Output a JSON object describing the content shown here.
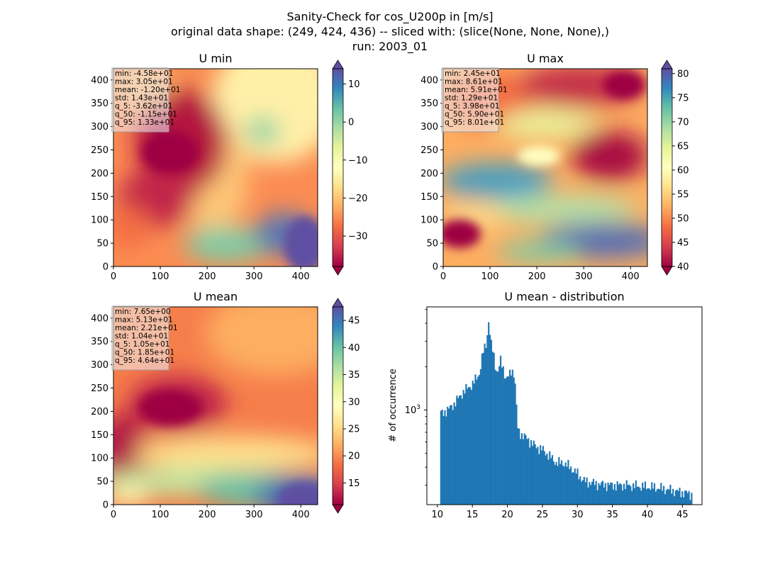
{
  "figure": {
    "title_lines": [
      "Sanity-Check for cos_U200p in [m/s]",
      "original data shape: (249, 424, 436) -- sliced with: (slice(None, None, None),)",
      "run: 2003_01"
    ]
  },
  "chart_data": [
    {
      "type": "heatmap",
      "title": "U min",
      "colormap": "Spectral",
      "xlim": [
        0,
        436
      ],
      "ylim": [
        0,
        424
      ],
      "xticks": [
        "0",
        "100",
        "200",
        "300",
        "400"
      ],
      "yticks": [
        "0",
        "50",
        "100",
        "150",
        "200",
        "250",
        "300",
        "350",
        "400"
      ],
      "colorbar": {
        "vmin": -38,
        "vmax": 14,
        "ticks": [
          "−30",
          "−20",
          "−10",
          "0",
          "10"
        ],
        "tick_values": [
          -30,
          -20,
          -10,
          0,
          10
        ],
        "extend": "both"
      },
      "stats": [
        "min: -4.58e+01",
        "max: 3.05e+01",
        "mean: -1.20e+01",
        "std: 1.43e+01",
        "q_5: -3.62e+01",
        "q_50: -1.15e+01",
        "q_95: 1.33e+01"
      ]
    },
    {
      "type": "heatmap",
      "title": "U max",
      "colormap": "Spectral",
      "xlim": [
        0,
        436
      ],
      "ylim": [
        0,
        424
      ],
      "xticks": [
        "0",
        "100",
        "200",
        "300",
        "400"
      ],
      "yticks": [
        "0",
        "50",
        "100",
        "150",
        "200",
        "250",
        "300",
        "350",
        "400"
      ],
      "colorbar": {
        "vmin": 40,
        "vmax": 81,
        "ticks": [
          "40",
          "45",
          "50",
          "55",
          "60",
          "65",
          "70",
          "75",
          "80"
        ],
        "tick_values": [
          40,
          45,
          50,
          55,
          60,
          65,
          70,
          75,
          80
        ],
        "extend": "both"
      },
      "stats": [
        "min: 2.45e+01",
        "max: 8.61e+01",
        "mean: 5.91e+01",
        "std: 1.29e+01",
        "q_5: 3.98e+01",
        "q_50: 5.90e+01",
        "q_95: 8.01e+01"
      ]
    },
    {
      "type": "heatmap",
      "title": "U mean",
      "colormap": "Spectral",
      "xlim": [
        0,
        436
      ],
      "ylim": [
        0,
        424
      ],
      "xticks": [
        "0",
        "100",
        "200",
        "300",
        "400"
      ],
      "yticks": [
        "0",
        "50",
        "100",
        "150",
        "200",
        "250",
        "300",
        "350",
        "400"
      ],
      "colorbar": {
        "vmin": 11,
        "vmax": 47.5,
        "ticks": [
          "15",
          "20",
          "25",
          "30",
          "35",
          "40",
          "45"
        ],
        "tick_values": [
          15,
          20,
          25,
          30,
          35,
          40,
          45
        ],
        "extend": "both"
      },
      "stats": [
        "min: 7.65e+00",
        "max: 5.13e+01",
        "mean: 2.21e+01",
        "std: 1.04e+01",
        "q_5: 1.05e+01",
        "q_50: 1.85e+01",
        "q_95: 4.64e+01"
      ]
    },
    {
      "type": "bar",
      "subtype": "histogram",
      "title": "U mean - distribution",
      "ylabel": "# of occurrence",
      "yscale": "log",
      "xlim": [
        8.5,
        47.8
      ],
      "ylim": [
        220,
        5200
      ],
      "xticks": [
        10,
        15,
        20,
        25,
        30,
        35,
        40,
        45
      ],
      "yticks": [
        {
          "value": 1000,
          "label": "10",
          "exp": "3"
        }
      ],
      "color": "#1f77b4",
      "x": [
        10.5,
        11.5,
        12.5,
        13.5,
        14.5,
        15.0,
        16.0,
        16.5,
        17.0,
        17.3,
        17.7,
        18.0,
        18.3,
        18.6,
        19.0,
        19.4,
        19.8,
        20.2,
        20.6,
        21.0,
        21.2,
        21.5,
        22.0,
        23.0,
        24.0,
        25.0,
        26.0,
        27.0,
        28.0,
        29.0,
        30.0,
        31.0,
        33.0,
        35.0,
        37.0,
        39.0,
        41.0,
        43.0,
        44.5,
        45.5,
        46.3
      ],
      "values": [
        950,
        1000,
        1120,
        1300,
        1450,
        1500,
        1800,
        2500,
        2900,
        4200,
        2800,
        2500,
        2000,
        1800,
        2200,
        1950,
        1650,
        1700,
        1900,
        1800,
        1250,
        720,
        680,
        620,
        560,
        530,
        480,
        430,
        430,
        400,
        360,
        320,
        305,
        300,
        300,
        295,
        290,
        280,
        270,
        265,
        260
      ]
    }
  ]
}
